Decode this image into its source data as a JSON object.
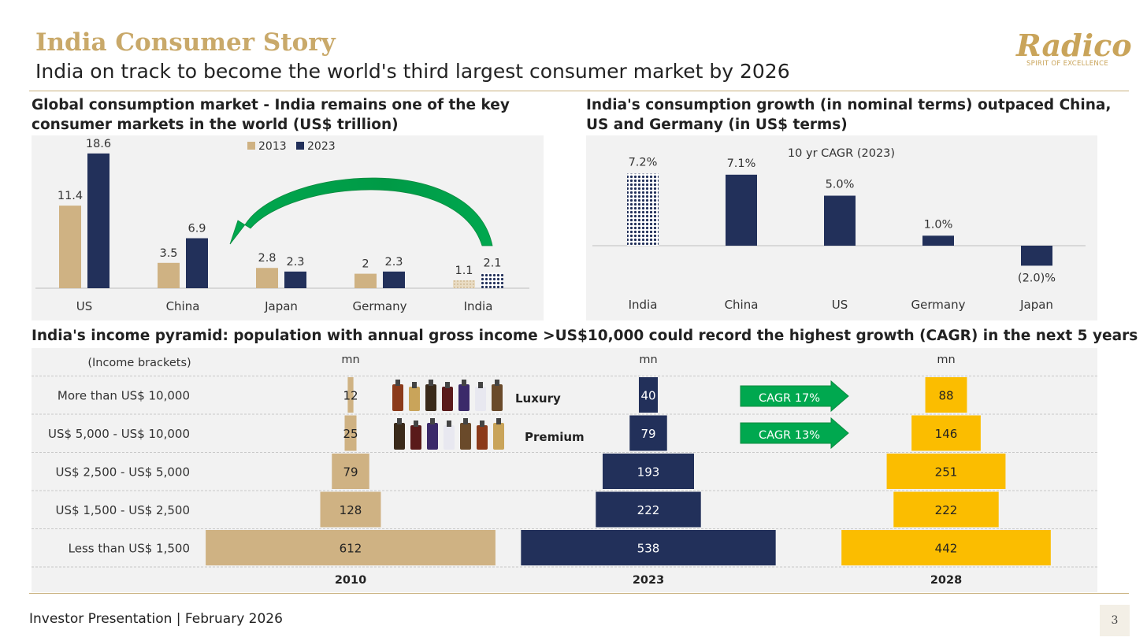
{
  "header": {
    "title": "India Consumer Story",
    "subtitle": "India on track to become the world's third largest consumer market by 2026",
    "logo_word": "Radico",
    "logo_tagline": "SPIRIT OF EXCELLENCE"
  },
  "footer": {
    "text": "Investor Presentation | February 2026",
    "page_number": "3"
  },
  "colors": {
    "tan": "#cfb283",
    "navy": "#22305a",
    "gold": "#fbbd00",
    "green": "#00a84f",
    "title_gold": "#c9a96a"
  },
  "chart_data": [
    {
      "id": "global-consumption",
      "type": "bar",
      "title": "Global consumption market - India remains one of the key consumer markets in the world (US$ trillion)",
      "categories": [
        "US",
        "China",
        "Japan",
        "Germany",
        "India"
      ],
      "series": [
        {
          "name": "2013",
          "values": [
            11.4,
            3.5,
            2.8,
            2,
            1.1
          ]
        },
        {
          "name": "2023",
          "values": [
            18.6,
            6.9,
            2.3,
            2.3,
            2.1
          ]
        }
      ],
      "ylim": [
        0,
        20
      ]
    },
    {
      "id": "consumption-growth",
      "type": "bar",
      "title": "India's consumption growth (in nominal terms) outpaced China, US and Germany (in US$ terms)",
      "series_label": "10 yr CAGR (2023)",
      "categories": [
        "India",
        "China",
        "US",
        "Germany",
        "Japan"
      ],
      "values": [
        7.2,
        7.1,
        5.0,
        1.0,
        -2.0
      ],
      "labels": [
        "7.2%",
        "7.1%",
        "5.0%",
        "1.0%",
        "(2.0)%"
      ],
      "ylim": [
        -2.5,
        8
      ]
    },
    {
      "id": "income-pyramid",
      "type": "bar",
      "title": "India's income pyramid: population with annual gross income >US$10,000 could record the highest growth (CAGR) in the next 5 years",
      "row_header": "(Income brackets)",
      "unit": "mn",
      "categories": [
        "More than US$ 10,000",
        "US$ 5,000 - US$ 10,000",
        "US$ 2,500 - US$ 5,000",
        "US$ 1,500 - US$ 2,500",
        "Less than US$ 1,500"
      ],
      "series": [
        {
          "name": "2010",
          "values": [
            12,
            25,
            79,
            128,
            612
          ]
        },
        {
          "name": "2023",
          "values": [
            40,
            79,
            193,
            222,
            538
          ]
        },
        {
          "name": "2028",
          "values": [
            88,
            146,
            251,
            222,
            442
          ]
        }
      ],
      "segment_labels": [
        "Luxury",
        "Premium"
      ],
      "cagr_labels": [
        "CAGR 17%",
        "CAGR 13%"
      ]
    }
  ]
}
